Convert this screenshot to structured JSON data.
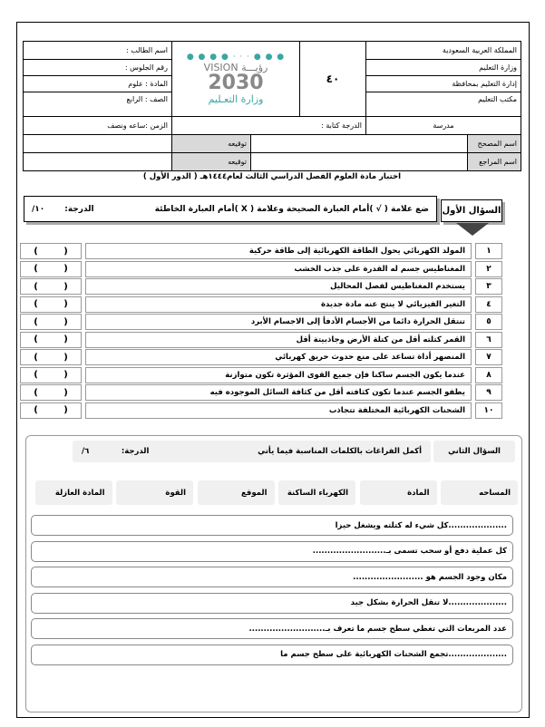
{
  "header": {
    "right": [
      "المملكة العربية السعودية",
      "وزارة التعليم",
      "إدارة التعليم بمحافظة",
      "مكتب التعليم"
    ],
    "total_grade": "٤٠",
    "left": [
      "اسم الطالب :",
      "رقم الجلوس :",
      "المادة : علوم",
      "الصف : الرابع"
    ],
    "school": "مدرسة",
    "grade_written": "الدرجة كتابة :",
    "time": "الزمن :ساعه ونصف",
    "corrector": "اسم المصحح",
    "reviewer": "اسم المراجع",
    "signature": "توقيعه",
    "logo": {
      "vision": "VISION",
      "ruya": "رؤيـــة",
      "year": "2030",
      "ministry": "وزارة التعـليم"
    }
  },
  "exam_title": "اختبار مادة العلوم الفصل الدراسي الثالث لعام١٤٤٤هـ ( الدور الأول )",
  "q1": {
    "label": "السؤال الأول",
    "instruction": "ضع علامة ( √ )أمام العبارة الصحيحة وعلامة ( X )أمام العبارة الخاطئة",
    "grade_label": "الدرجة:",
    "grade": "١٠/",
    "items": [
      {
        "n": "١",
        "text": "المولد الكهربائي يحول الطاقة الكهربائية إلى طاقة حركية"
      },
      {
        "n": "٢",
        "text": "المغناطيس جسم له القدرة على جذب الخشب"
      },
      {
        "n": "٣",
        "text": "يستخدم المغناطيس لفصل المحاليل"
      },
      {
        "n": "٤",
        "text": "التغير الفيزيائي لا ينتج عنه مادة جديدة"
      },
      {
        "n": "٥",
        "text": "تنتقل الحرارة دائما من الأجسام الأدفأ إلى الاجسام الأبرد"
      },
      {
        "n": "٦",
        "text": "القمر كتلته أقل من كتلة الأرض وجاذبيتة أقل"
      },
      {
        "n": "٧",
        "text": "المنصهر أداة تساعد على منع حدوث حريق كهربائي"
      },
      {
        "n": "٨",
        "text": "عندما يكون الجسم ساكنا فإن جميع القوى المؤثرة تكون متوازنة"
      },
      {
        "n": "٩",
        "text": "يطفو الجسم عندما تكون كثافته أقل من كثافة السائل الموجوده فيه"
      },
      {
        "n": "١٠",
        "text": "الشحنات الكهربائية المختلفة تتجاذب"
      }
    ]
  },
  "q2": {
    "label": "السؤال الثاني",
    "instruction": "أكمل الفراغات بالكلمات المناسبة فيما يأتي",
    "grade_label": "الدرجة:",
    "grade": "٦/",
    "words": [
      "المساحه",
      "المادة",
      "الكهرباء الساكنة",
      "الموقع",
      "القوة",
      "المادة العازلة"
    ],
    "sentences": [
      "....................كل شيء له كتلته ويشغل حيزا",
      "كل عملية دفع أو سحب تسمى بـ.........................",
      "مكان وجود الجسم هو ........................",
      "....................لا تنقل الحرارة بشكل جيد",
      "عدد المربعات التي تغطي سطح جسم ما تعرف بـ..........................",
      "....................تجمع الشحنات الكهربائية على سطح جسم ما"
    ]
  }
}
